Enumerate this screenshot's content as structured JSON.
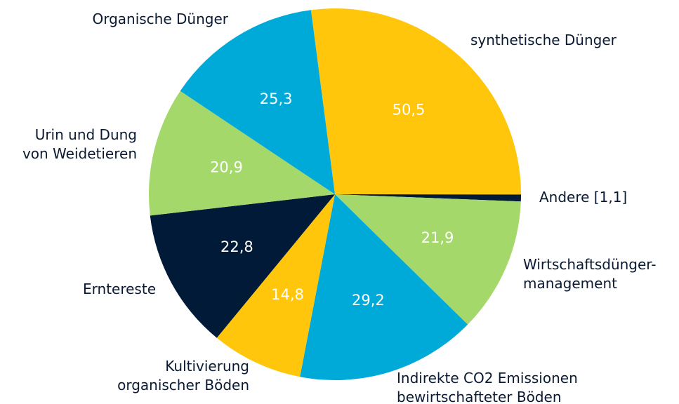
{
  "chart_data": {
    "type": "pie",
    "categories": [
      "synthetische Dünger",
      "Andere [1,1]",
      "Wirtschaftsdünger-\nmanagement",
      "Indirekte CO2 Emissionen\nbewirtschafteter Böden",
      "Kultivierung\norganischer Böden",
      "Erntereste",
      "Urin und Dung\nvon Weidetieren",
      "Organische Dünger"
    ],
    "values": [
      50.5,
      1.1,
      21.9,
      29.2,
      14.8,
      22.8,
      20.9,
      25.3
    ],
    "value_labels": [
      "50,5",
      null,
      "21,9",
      "29,2",
      "14,8",
      "22,8",
      "20,9",
      "25,3"
    ],
    "colors": [
      "#ffc60b",
      "#011a37",
      "#a5d86a",
      "#00aad8",
      "#ffc60b",
      "#011a37",
      "#a5d86a",
      "#00aad8"
    ]
  }
}
